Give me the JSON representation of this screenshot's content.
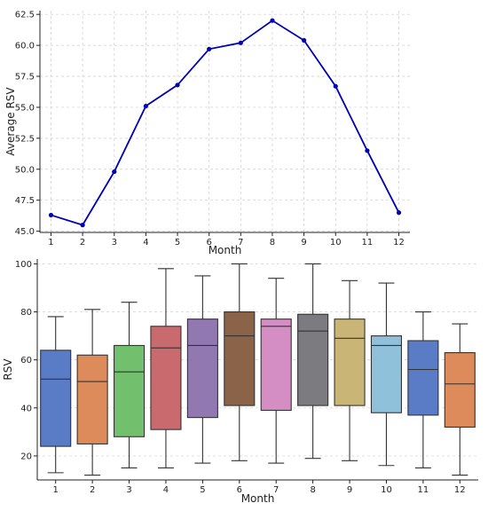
{
  "chart_data": [
    {
      "type": "line",
      "title": "",
      "xlabel": "Month",
      "ylabel": "Average RSV",
      "x": [
        1,
        2,
        3,
        4,
        5,
        6,
        7,
        8,
        9,
        10,
        11,
        12
      ],
      "xticks": [
        "1",
        "2",
        "3",
        "4",
        "5",
        "6",
        "7",
        "8",
        "9",
        "10",
        "11",
        "12"
      ],
      "y": [
        46.3,
        45.5,
        49.8,
        55.1,
        56.8,
        59.7,
        60.2,
        62.0,
        60.4,
        56.7,
        51.5,
        46.5
      ],
      "ylim": [
        44.9,
        62.8
      ],
      "yticks": [
        "45.0",
        "47.5",
        "50.0",
        "52.5",
        "55.0",
        "57.5",
        "60.0",
        "62.5"
      ],
      "grid": true,
      "color": "#0000b4"
    },
    {
      "type": "box",
      "title": "",
      "xlabel": "Month",
      "ylabel": "RSV",
      "categories": [
        "1",
        "2",
        "3",
        "4",
        "5",
        "6",
        "7",
        "8",
        "9",
        "10",
        "11",
        "12"
      ],
      "boxes": [
        {
          "min": 13,
          "q1": 24,
          "median": 52,
          "q3": 64,
          "max": 78
        },
        {
          "min": 12,
          "q1": 25,
          "median": 51,
          "q3": 62,
          "max": 81
        },
        {
          "min": 15,
          "q1": 28,
          "median": 55,
          "q3": 66,
          "max": 84
        },
        {
          "min": 15,
          "q1": 31,
          "median": 65,
          "q3": 74,
          "max": 98
        },
        {
          "min": 17,
          "q1": 36,
          "median": 66,
          "q3": 77,
          "max": 95
        },
        {
          "min": 18,
          "q1": 41,
          "median": 70,
          "q3": 80,
          "max": 100
        },
        {
          "min": 17,
          "q1": 39,
          "median": 74,
          "q3": 77,
          "max": 94
        },
        {
          "min": 19,
          "q1": 41,
          "median": 72,
          "q3": 79,
          "max": 100
        },
        {
          "min": 18,
          "q1": 41,
          "median": 69,
          "q3": 77,
          "max": 93
        },
        {
          "min": 16,
          "q1": 38,
          "median": 66,
          "q3": 70,
          "max": 92
        },
        {
          "min": 15,
          "q1": 37,
          "median": 56,
          "q3": 68,
          "max": 80
        },
        {
          "min": 12,
          "q1": 32,
          "median": 50,
          "q3": 63,
          "max": 75
        }
      ],
      "colors": [
        "#5a7bc6",
        "#dd8b5a",
        "#72bf6e",
        "#c96a6e",
        "#9178b0",
        "#8a6348",
        "#d48ec3",
        "#7c7b80",
        "#c9b676",
        "#8fc1db",
        "#5a7bc6",
        "#dd8b5a"
      ],
      "ylim": [
        10,
        102
      ],
      "yticks": [
        "20",
        "40",
        "60",
        "80",
        "100"
      ],
      "grid": true
    }
  ]
}
